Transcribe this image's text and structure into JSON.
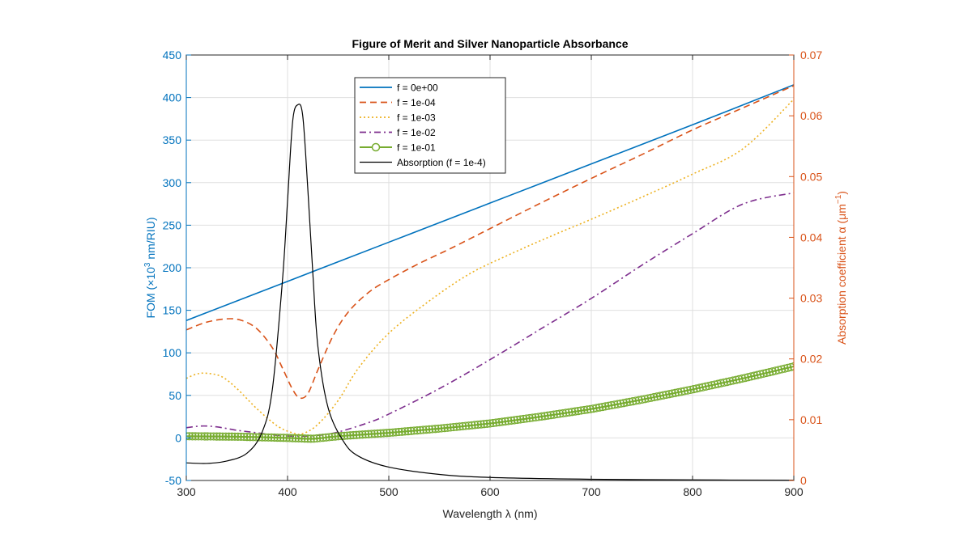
{
  "chart_data": {
    "type": "line",
    "title": "Figure of Merit and Silver Nanoparticle Absorbance",
    "xlabel": "Wavelength λ (nm)",
    "ylabel_left": "FOM (×10",
    "ylabel_left_sup": "3",
    "ylabel_left_tail": " nm/RIU)",
    "ylabel_right": "Absorption coefficient α (μm",
    "ylabel_right_sup": "−1",
    "ylabel_right_tail": ")",
    "xlim": [
      300,
      900
    ],
    "ylim_left": [
      -50,
      450
    ],
    "ylim_right": [
      0,
      0.07
    ],
    "xticks": [
      "300",
      "400",
      "500",
      "600",
      "700",
      "800",
      "900"
    ],
    "yticks_left": [
      "-50",
      "0",
      "50",
      "100",
      "150",
      "200",
      "250",
      "300",
      "350",
      "400",
      "450"
    ],
    "yticks_right": [
      "0",
      "0.01",
      "0.02",
      "0.03",
      "0.04",
      "0.05",
      "0.06",
      "0.07"
    ],
    "grid": true,
    "legend_position": "top-center",
    "colors": {
      "left_axis": "#0072bd",
      "right_axis": "#d95319",
      "grid": "#dfdfdf",
      "axis": "#262626"
    },
    "series": [
      {
        "name": "f = 0e+00",
        "axis": "left",
        "color": "#0072bd",
        "style": "solid",
        "x": [
          300,
          400,
          500,
          600,
          700,
          800,
          900
        ],
        "y": [
          138,
          184,
          230,
          276,
          322,
          368,
          415
        ]
      },
      {
        "name": "f = 1e-04",
        "axis": "left",
        "color": "#d95319",
        "style": "dashed",
        "x": [
          300,
          320,
          340,
          355,
          370,
          385,
          395,
          405,
          412,
          420,
          430,
          445,
          460,
          480,
          500,
          530,
          560,
          600,
          650,
          700,
          750,
          800,
          850,
          900
        ],
        "y": [
          127,
          136,
          140,
          138,
          128,
          106,
          82,
          57,
          47,
          52,
          80,
          120,
          148,
          171,
          186,
          205,
          222,
          246,
          276,
          305,
          333,
          362,
          388,
          414
        ]
      },
      {
        "name": "f = 1e-03",
        "axis": "left",
        "color": "#edb120",
        "style": "dotted",
        "x": [
          300,
          310,
          320,
          335,
          350,
          370,
          390,
          405,
          415,
          430,
          450,
          470,
          500,
          540,
          580,
          620,
          660,
          700,
          750,
          800,
          850,
          900
        ],
        "y": [
          70,
          75,
          76,
          72,
          58,
          34,
          14,
          6,
          5,
          16,
          44,
          82,
          123,
          161,
          193,
          216,
          237,
          257,
          283,
          310,
          340,
          398
        ]
      },
      {
        "name": "f = 1e-02",
        "axis": "left",
        "color": "#7e2f8e",
        "style": "dashdot",
        "x": [
          300,
          315,
          330,
          350,
          370,
          390,
          410,
          430,
          450,
          480,
          500,
          550,
          600,
          650,
          700,
          750,
          800,
          850,
          900
        ],
        "y": [
          12,
          14,
          13,
          9,
          6,
          3,
          2,
          3,
          7,
          18,
          28,
          58,
          92,
          128,
          164,
          203,
          240,
          275,
          288
        ]
      },
      {
        "name": "f = 1e-01",
        "axis": "left",
        "color": "#77ac30",
        "style": "solid-markers",
        "x": [
          300,
          350,
          400,
          425,
          450,
          500,
          550,
          600,
          650,
          700,
          750,
          800,
          850,
          900
        ],
        "y": [
          2,
          1.5,
          0,
          -1,
          2,
          6,
          11,
          17,
          25,
          34,
          45,
          57,
          70,
          84
        ]
      },
      {
        "name": "Absorption (f = 1e-4)",
        "axis": "right",
        "color": "#000000",
        "style": "solid-thin",
        "x": [
          300,
          320,
          340,
          360,
          375,
          385,
          395,
          400,
          405,
          410,
          415,
          420,
          425,
          430,
          440,
          455,
          470,
          500,
          550,
          600,
          700,
          800,
          900
        ],
        "y": [
          0.0029,
          0.0028,
          0.0032,
          0.0045,
          0.008,
          0.015,
          0.033,
          0.046,
          0.059,
          0.0618,
          0.06,
          0.048,
          0.034,
          0.022,
          0.012,
          0.0065,
          0.004,
          0.0022,
          0.001,
          0.0005,
          0.0002,
          0.0001,
          5e-05
        ]
      }
    ]
  }
}
